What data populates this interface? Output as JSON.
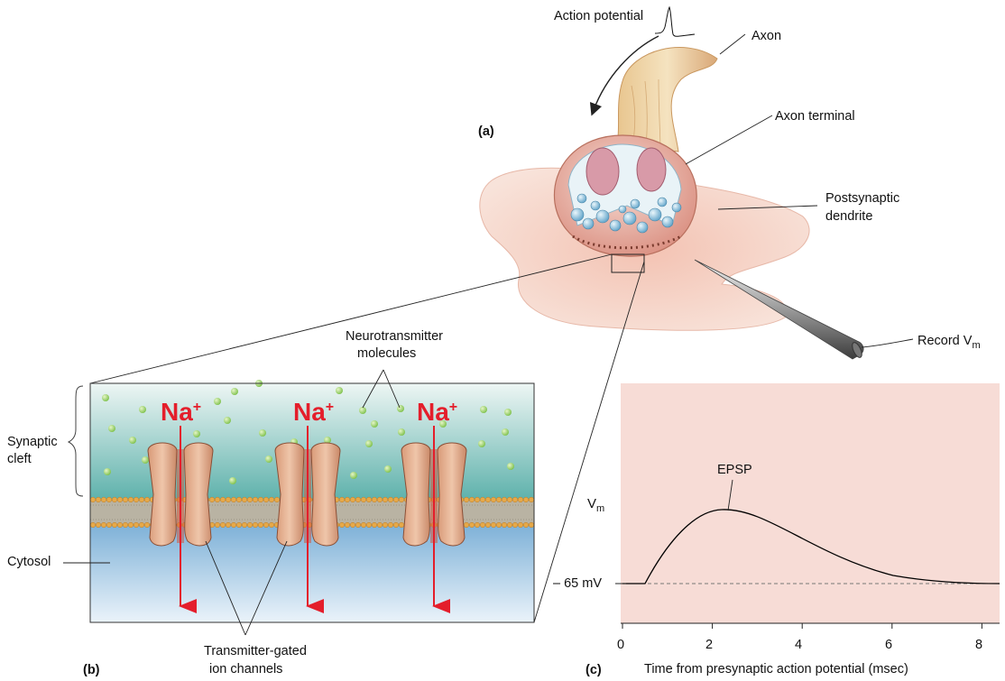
{
  "panel_a": {
    "tag": "(a)",
    "action_potential": "Action potential",
    "axon": "Axon",
    "axon_terminal": "Axon terminal",
    "postsynaptic_line1": "Postsynaptic",
    "postsynaptic_line2": "dendrite",
    "record_base": "Record V",
    "record_sub": "m"
  },
  "panel_b": {
    "tag": "(b)",
    "neurotransmitter_line1": "Neurotransmitter",
    "neurotransmitter_line2": "molecules",
    "synaptic_line1": "Synaptic",
    "synaptic_line2": "cleft",
    "cytosol": "Cytosol",
    "ion_label": "Na",
    "ion_charge": "+",
    "channels_line1": "Transmitter-gated",
    "channels_line2": "ion channels"
  },
  "panel_c": {
    "tag": "(c)",
    "ylabel_base": "V",
    "ylabel_sub": "m",
    "baseline_label": "– 65 mV",
    "peak_label": "EPSP",
    "xlabel": "Time from presynaptic action potential (msec)",
    "x_ticks": [
      "0",
      "2",
      "4",
      "6",
      "8"
    ],
    "colors": {
      "background": "#f7dcd6",
      "trace": "#000000"
    }
  }
}
